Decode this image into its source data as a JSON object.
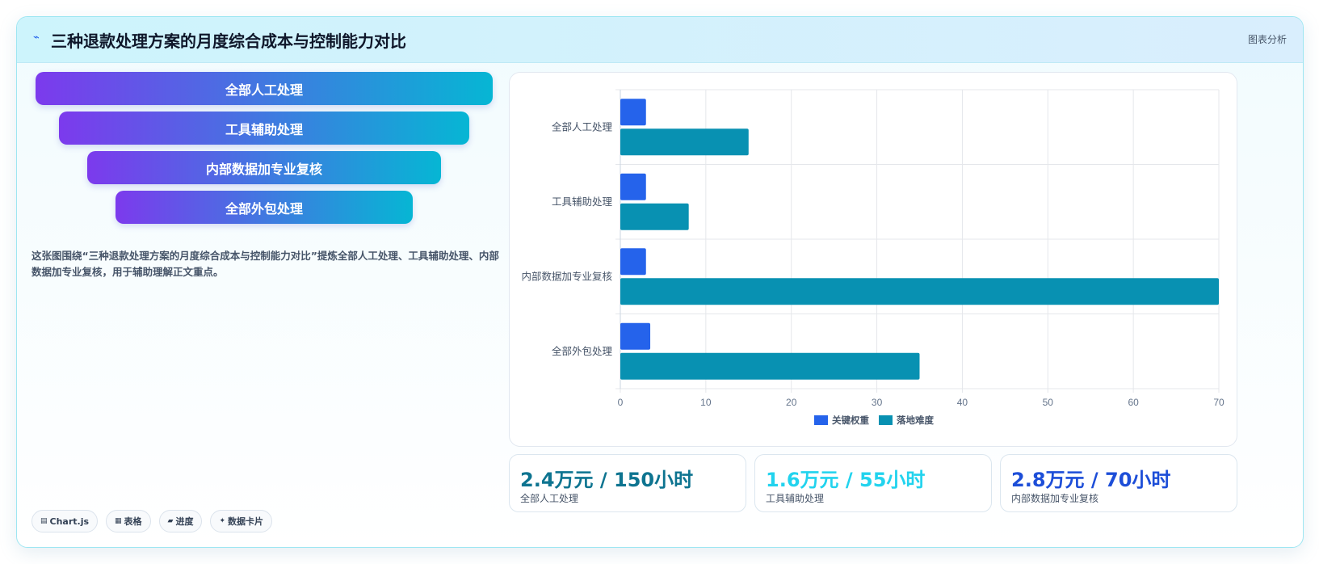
{
  "header": {
    "icon": "pulse-icon",
    "title": "三种退款处理方案的月度综合成本与控制能力对比",
    "link": "图表分析"
  },
  "funnel": [
    {
      "label": "全部人工处理"
    },
    {
      "label": "工具辅助处理"
    },
    {
      "label": "内部数据加专业复核"
    },
    {
      "label": "全部外包处理"
    }
  ],
  "description": "这张图围绕“三种退款处理方案的月度综合成本与控制能力对比”提炼全部人工处理、工具辅助处理、内部数据加专业复核，用于辅助理解正文重点。",
  "tags": [
    {
      "icon": "chart-icon",
      "label": "Chart.js"
    },
    {
      "icon": "table-icon",
      "label": "表格"
    },
    {
      "icon": "progress-icon",
      "label": "进度"
    },
    {
      "icon": "card-icon",
      "label": "数据卡片"
    }
  ],
  "chart_data": {
    "type": "bar",
    "orientation": "horizontal",
    "categories": [
      "全部人工处理",
      "工具辅助处理",
      "内部数据加专业复核",
      "全部外包处理"
    ],
    "series": [
      {
        "name": "关键权重",
        "values": [
          3,
          3,
          3,
          3.5
        ],
        "color": "#2563eb"
      },
      {
        "name": "落地难度",
        "values": [
          15,
          8,
          70,
          35
        ],
        "color": "#0891b2"
      }
    ],
    "xlim": [
      0,
      70
    ],
    "xticks": [
      0,
      10,
      20,
      30,
      40,
      50,
      60,
      70
    ],
    "grid": true,
    "legend_position": "bottom"
  },
  "kpis": [
    {
      "value": "2.4万元 / 150小时",
      "label": "全部人工处理",
      "color": "#0e7490"
    },
    {
      "value": "1.6万元 / 55小时",
      "label": "工具辅助处理",
      "color": "#22d3ee"
    },
    {
      "value": "2.8万元 / 70小时",
      "label": "内部数据加专业复核",
      "color": "#1d4ed8"
    }
  ]
}
